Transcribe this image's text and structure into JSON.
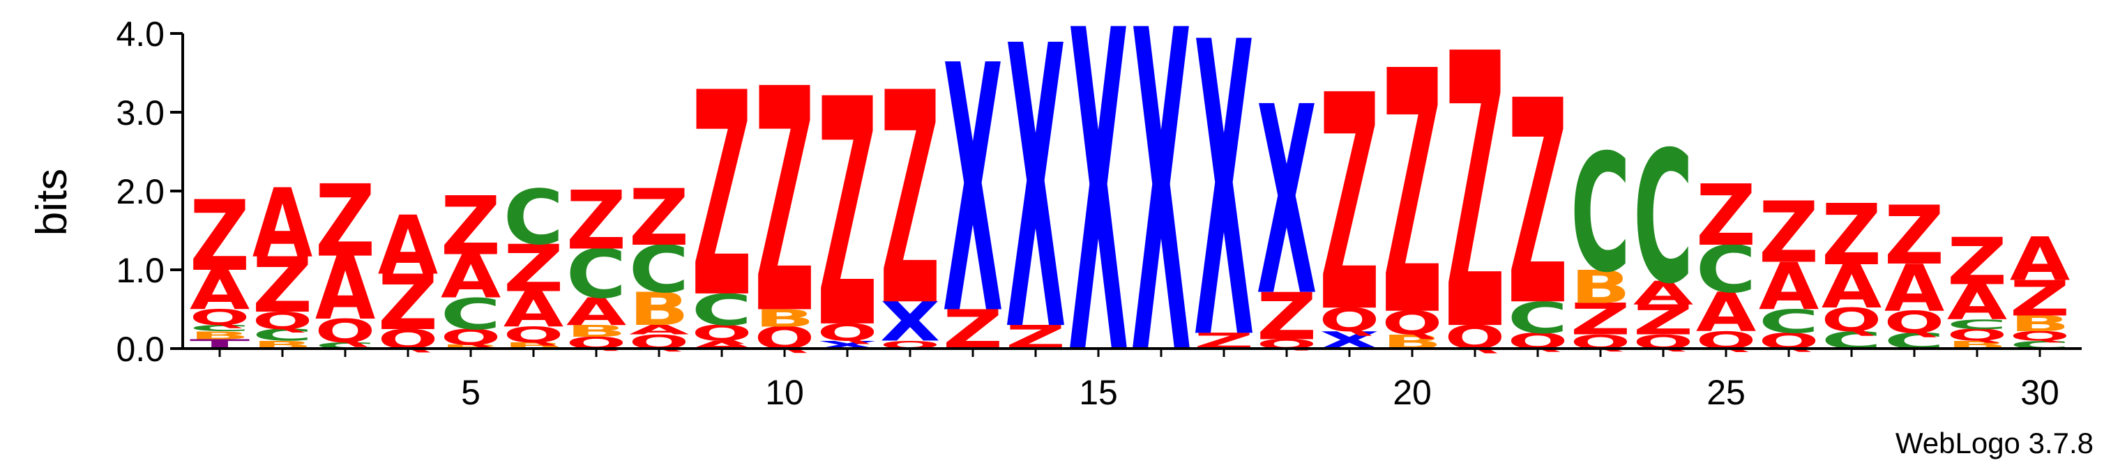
{
  "chart_data": {
    "type": "sequence-logo",
    "ylabel": "bits",
    "ylim": [
      0,
      4.0
    ],
    "yticks": [
      "0.0",
      "1.0",
      "2.0",
      "3.0",
      "4.0"
    ],
    "xticks": [
      5,
      10,
      15,
      20,
      25,
      30
    ],
    "credit": "WebLogo 3.7.8",
    "colors": {
      "Z": "#ff0000",
      "A": "#ff0000",
      "Q": "#ff0000",
      "X": "#0000ff",
      "C": "#228b22",
      "B": "#ff8c00",
      "T": "#800080"
    },
    "positions": [
      {
        "pos": 1,
        "stack": [
          [
            "T",
            0.12
          ],
          [
            "B",
            0.1
          ],
          [
            "C",
            0.08
          ],
          [
            "Q",
            0.2
          ],
          [
            "A",
            0.5
          ],
          [
            "Z",
            0.9
          ]
        ]
      },
      {
        "pos": 2,
        "stack": [
          [
            "B",
            0.1
          ],
          [
            "C",
            0.15
          ],
          [
            "Q",
            0.22
          ],
          [
            "Z",
            0.7
          ],
          [
            "A",
            0.88
          ]
        ]
      },
      {
        "pos": 3,
        "stack": [
          [
            "C",
            0.08
          ],
          [
            "Q",
            0.3
          ],
          [
            "A",
            0.8
          ],
          [
            "Z",
            0.92
          ]
        ]
      },
      {
        "pos": 4,
        "stack": [
          [
            "Q",
            0.25
          ],
          [
            "Z",
            0.7
          ],
          [
            "A",
            0.75
          ]
        ]
      },
      {
        "pos": 5,
        "stack": [
          [
            "B",
            0.05
          ],
          [
            "Q",
            0.2
          ],
          [
            "C",
            0.4
          ],
          [
            "A",
            0.55
          ],
          [
            "Z",
            0.75
          ]
        ]
      },
      {
        "pos": 6,
        "stack": [
          [
            "B",
            0.08
          ],
          [
            "Q",
            0.2
          ],
          [
            "A",
            0.45
          ],
          [
            "Z",
            0.6
          ],
          [
            "C",
            0.7
          ]
        ]
      },
      {
        "pos": 7,
        "stack": [
          [
            "Q",
            0.15
          ],
          [
            "B",
            0.15
          ],
          [
            "A",
            0.35
          ],
          [
            "C",
            0.62
          ],
          [
            "Z",
            0.75
          ]
        ]
      },
      {
        "pos": 8,
        "stack": [
          [
            "Q",
            0.18
          ],
          [
            "A",
            0.12
          ],
          [
            "B",
            0.42
          ],
          [
            "C",
            0.6
          ],
          [
            "Z",
            0.72
          ]
        ]
      },
      {
        "pos": 9,
        "stack": [
          [
            "A",
            0.1
          ],
          [
            "Q",
            0.2
          ],
          [
            "C",
            0.4
          ],
          [
            "Z",
            2.6
          ]
        ]
      },
      {
        "pos": 10,
        "stack": [
          [
            "Q",
            0.28
          ],
          [
            "B",
            0.22
          ],
          [
            "Z",
            2.85
          ]
        ]
      },
      {
        "pos": 11,
        "stack": [
          [
            "X",
            0.1
          ],
          [
            "Q",
            0.22
          ],
          [
            "Z",
            2.9
          ]
        ]
      },
      {
        "pos": 12,
        "stack": [
          [
            "Q",
            0.1
          ],
          [
            "X",
            0.5
          ],
          [
            "Z",
            2.7
          ]
        ]
      },
      {
        "pos": 13,
        "stack": [
          [
            "Z",
            0.5
          ],
          [
            "X",
            3.15
          ]
        ]
      },
      {
        "pos": 14,
        "stack": [
          [
            "Z",
            0.3
          ],
          [
            "X",
            3.6
          ]
        ]
      },
      {
        "pos": 15,
        "stack": [
          [
            "X",
            4.1
          ]
        ]
      },
      {
        "pos": 16,
        "stack": [
          [
            "X",
            4.1
          ]
        ]
      },
      {
        "pos": 17,
        "stack": [
          [
            "Z",
            0.2
          ],
          [
            "X",
            3.75
          ]
        ]
      },
      {
        "pos": 18,
        "stack": [
          [
            "Q",
            0.12
          ],
          [
            "Z",
            0.6
          ],
          [
            "X",
            2.4
          ]
        ]
      },
      {
        "pos": 19,
        "stack": [
          [
            "X",
            0.22
          ],
          [
            "Q",
            0.3
          ],
          [
            "Z",
            2.75
          ]
        ]
      },
      {
        "pos": 20,
        "stack": [
          [
            "B",
            0.18
          ],
          [
            "Q",
            0.3
          ],
          [
            "Z",
            3.1
          ]
        ]
      },
      {
        "pos": 21,
        "stack": [
          [
            "Q",
            0.3
          ],
          [
            "Z",
            3.5
          ]
        ]
      },
      {
        "pos": 22,
        "stack": [
          [
            "Q",
            0.2
          ],
          [
            "C",
            0.4
          ],
          [
            "Z",
            2.6
          ]
        ]
      },
      {
        "pos": 23,
        "stack": [
          [
            "Q",
            0.18
          ],
          [
            "Z",
            0.4
          ],
          [
            "B",
            0.42
          ],
          [
            "C",
            1.5
          ]
        ]
      },
      {
        "pos": 24,
        "stack": [
          [
            "Q",
            0.18
          ],
          [
            "Z",
            0.38
          ],
          [
            "A",
            0.3
          ],
          [
            "C",
            1.68
          ]
        ]
      },
      {
        "pos": 25,
        "stack": [
          [
            "Q",
            0.22
          ],
          [
            "A",
            0.5
          ],
          [
            "C",
            0.6
          ],
          [
            "Z",
            0.78
          ]
        ]
      },
      {
        "pos": 26,
        "stack": [
          [
            "Q",
            0.2
          ],
          [
            "C",
            0.3
          ],
          [
            "A",
            0.6
          ],
          [
            "Z",
            0.78
          ]
        ]
      },
      {
        "pos": 27,
        "stack": [
          [
            "C",
            0.22
          ],
          [
            "Q",
            0.3
          ],
          [
            "A",
            0.55
          ],
          [
            "Z",
            0.78
          ]
        ]
      },
      {
        "pos": 28,
        "stack": [
          [
            "C",
            0.2
          ],
          [
            "Q",
            0.28
          ],
          [
            "A",
            0.6
          ],
          [
            "Z",
            0.75
          ]
        ]
      },
      {
        "pos": 29,
        "stack": [
          [
            "B",
            0.1
          ],
          [
            "Q",
            0.15
          ],
          [
            "C",
            0.12
          ],
          [
            "A",
            0.45
          ],
          [
            "Z",
            0.6
          ]
        ]
      },
      {
        "pos": 30,
        "stack": [
          [
            "C",
            0.1
          ],
          [
            "Q",
            0.12
          ],
          [
            "B",
            0.2
          ],
          [
            "Z",
            0.45
          ],
          [
            "A",
            0.55
          ]
        ]
      }
    ]
  }
}
